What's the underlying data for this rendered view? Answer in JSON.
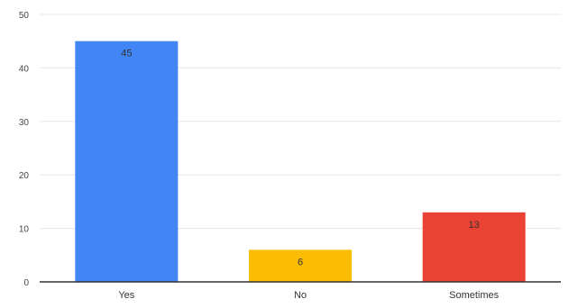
{
  "chart_data": {
    "type": "bar",
    "title": "",
    "xlabel": "",
    "ylabel": "",
    "categories": [
      "Yes",
      "No",
      "Sometimes"
    ],
    "values": [
      45,
      6,
      13
    ],
    "colors": [
      "#4285f4",
      "#fbbc04",
      "#ea4335"
    ],
    "ylim": [
      0,
      50
    ],
    "yticks": [
      "0",
      "10",
      "20",
      "30",
      "40",
      "50"
    ],
    "grid": true,
    "legend": "none",
    "data_labels": [
      "45",
      "6",
      "13"
    ]
  }
}
